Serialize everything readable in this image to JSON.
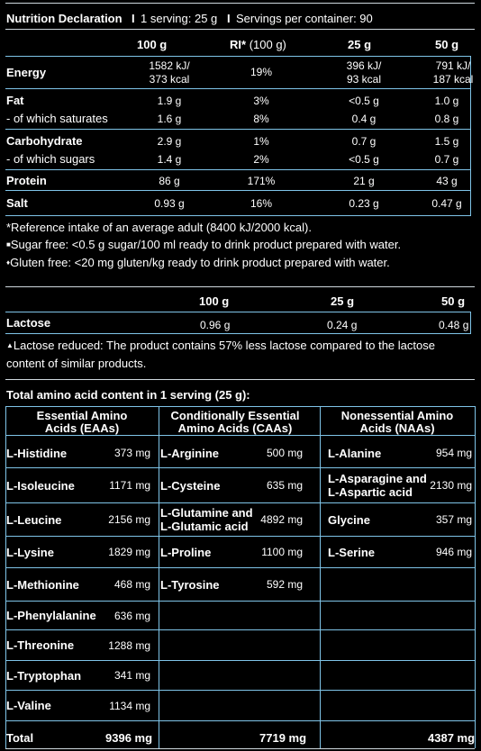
{
  "nutrition": {
    "header": "Nutrition Declaration",
    "header_sep1": "I",
    "header_serving": "1 serving: 25 g",
    "header_sep2": "I",
    "header_servings": "Servings per container: 90",
    "cols": [
      "100 g",
      "RI*",
      "(100 g)",
      "25 g",
      "50 g"
    ],
    "rows": [
      {
        "label": "Energy",
        "v100": "1582 kJ/\n373 kcal",
        "ri": "19%",
        "v25": "396 kJ/\n93 kcal",
        "v50": "791 kJ/\n187 kcal"
      },
      {
        "label": "Fat",
        "v100": "1.9 g",
        "ri": "3%",
        "v25": "<0.5 g",
        "v50": "1.0 g"
      },
      {
        "label": "- of which saturates",
        "v100": "1.6 g",
        "ri": "8%",
        "v25": "0.4 g",
        "v50": "0.8 g"
      },
      {
        "label": "Carbohydrate",
        "v100": "2.9 g",
        "ri": "1%",
        "v25": "0.7 g",
        "v50": "1.5 g"
      },
      {
        "label": "- of which sugars",
        "v100": "1.4 g",
        "ri": "2%",
        "v25": "<0.5 g",
        "v50": "0.7 g"
      },
      {
        "label": "Protein",
        "v100": "86 g",
        "ri": "171%",
        "v25": "21 g",
        "v50": "43 g"
      },
      {
        "label": "Salt",
        "v100": "0.93 g",
        "ri": "16%",
        "v25": "0.23 g",
        "v50": "0.47 g"
      }
    ],
    "notes": [
      "*Reference intake of an average adult (8400 kJ/2000 kcal).",
      "Sugar free: <0.5 g sugar/100 ml ready to drink product prepared with water.",
      "Gluten free: <20 mg gluten/kg ready to drink product prepared with water."
    ],
    "note_marks": [
      "■",
      "♦"
    ]
  },
  "lactose": {
    "cols": [
      "100 g",
      "25 g",
      "50 g"
    ],
    "label": "Lactose",
    "v100": "0.96 g",
    "v25": "0.24 g",
    "v50": "0.48 g",
    "note_mark": "▲",
    "note_line1": "Lactose reduced: The product contains 57% less lactose compared to the lactose",
    "note_line2": "content of similar products."
  },
  "amino": {
    "title": "Total amino acid content in 1 serving (25 g):",
    "headers": [
      [
        "Essential Amino",
        "Acids (EAAs)"
      ],
      [
        "Conditionally Essential",
        "Amino Acids (CAAs)"
      ],
      [
        "Nonessential Amino",
        "Acids (NAAs)"
      ]
    ],
    "rows": [
      [
        [
          "L-Histidine",
          "373 mg"
        ],
        [
          "L-Arginine",
          "500 mg"
        ],
        [
          "L-Alanine",
          "954 mg"
        ]
      ],
      [
        [
          "L-Isoleucine",
          "1171 mg"
        ],
        [
          "L-Cysteine",
          "635 mg"
        ],
        [
          "L-Asparagine and\nL-Aspartic acid",
          "2130 mg"
        ]
      ],
      [
        [
          "L-Leucine",
          "2156 mg"
        ],
        [
          "L-Glutamine and\nL-Glutamic acid",
          "4892 mg"
        ],
        [
          "Glycine",
          "357 mg"
        ]
      ],
      [
        [
          "L-Lysine",
          "1829 mg"
        ],
        [
          "L-Proline",
          "1100 mg"
        ],
        [
          "L-Serine",
          "946 mg"
        ]
      ],
      [
        [
          "L-Methionine",
          "468 mg"
        ],
        [
          "L-Tyrosine",
          "592 mg"
        ],
        [
          "",
          ""
        ]
      ],
      [
        [
          "L-Phenylalanine",
          "636 mg"
        ],
        [
          "",
          ""
        ],
        [
          "",
          ""
        ]
      ],
      [
        [
          "L-Threonine",
          "1288 mg"
        ],
        [
          "",
          ""
        ],
        [
          "",
          ""
        ]
      ],
      [
        [
          "L-Tryptophan",
          "341 mg"
        ],
        [
          "",
          ""
        ],
        [
          "",
          ""
        ]
      ],
      [
        [
          "L-Valine",
          "1134 mg"
        ],
        [
          "",
          ""
        ],
        [
          "",
          ""
        ]
      ]
    ],
    "total_label": "Total",
    "totals": [
      "9396 mg",
      "7719 mg",
      "4387 mg"
    ]
  }
}
